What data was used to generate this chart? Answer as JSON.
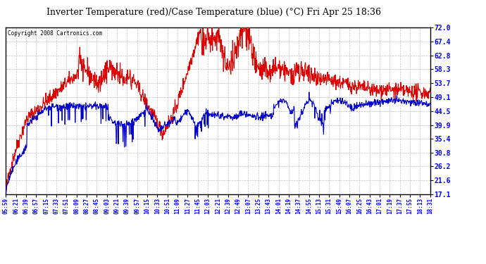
{
  "title": "Inverter Temperature (red)/Case Temperature (blue) (°C) Fri Apr 25 18:36",
  "copyright": "Copyright 2008 Cartronics.com",
  "yticks": [
    17.1,
    21.6,
    26.2,
    30.8,
    35.4,
    39.9,
    44.5,
    49.1,
    53.7,
    58.3,
    62.8,
    67.4,
    72.0
  ],
  "ymin": 17.1,
  "ymax": 72.0,
  "bg_color": "#ffffff",
  "plot_bg_color": "#ffffff",
  "grid_color": "#bbbbbb",
  "red_color": "#dd0000",
  "blue_color": "#0000cc",
  "title_fontsize": 10,
  "x_labels": [
    "05:59",
    "06:21",
    "06:39",
    "06:57",
    "07:15",
    "07:33",
    "07:51",
    "08:09",
    "08:27",
    "08:45",
    "09:03",
    "09:21",
    "09:39",
    "09:57",
    "10:15",
    "10:33",
    "10:51",
    "11:09",
    "11:27",
    "11:45",
    "12:03",
    "12:21",
    "12:39",
    "12:49",
    "13:07",
    "13:25",
    "13:43",
    "14:01",
    "14:19",
    "14:37",
    "14:55",
    "15:13",
    "15:31",
    "15:49",
    "16:07",
    "16:25",
    "16:43",
    "17:01",
    "17:19",
    "17:37",
    "17:55",
    "18:13",
    "18:31"
  ]
}
